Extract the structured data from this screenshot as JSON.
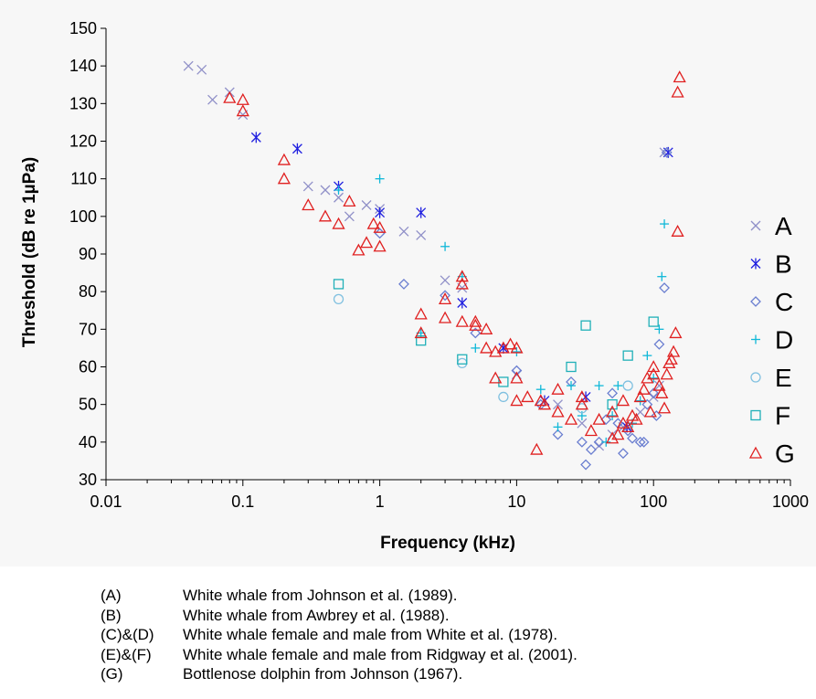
{
  "chart_data": {
    "type": "scatter",
    "xlabel": "Frequency (kHz)",
    "ylabel": "Threshold (dB re 1µPa)",
    "xscale": "log",
    "xlim": [
      0.01,
      1000
    ],
    "ylim": [
      30,
      150
    ],
    "x_ticks": [
      0.01,
      0.1,
      1,
      10,
      100,
      1000
    ],
    "x_tick_labels": [
      "0.01",
      "0.1",
      "1",
      "10",
      "100",
      "1000"
    ],
    "y_ticks": [
      30,
      40,
      50,
      60,
      70,
      80,
      90,
      100,
      110,
      120,
      130,
      140,
      150
    ],
    "y_tick_labels": [
      "30",
      "40",
      "50",
      "60",
      "70",
      "80",
      "90",
      "100",
      "110",
      "120",
      "130",
      "140",
      "150"
    ],
    "grid": false,
    "legend_position": "right",
    "series": [
      {
        "name": "A",
        "marker": "x",
        "color": "#9090c8",
        "points": [
          [
            0.04,
            140
          ],
          [
            0.05,
            139
          ],
          [
            0.06,
            131
          ],
          [
            0.08,
            133
          ],
          [
            0.1,
            127
          ],
          [
            0.3,
            108
          ],
          [
            0.4,
            107
          ],
          [
            0.5,
            105
          ],
          [
            0.6,
            100
          ],
          [
            0.8,
            103
          ],
          [
            1,
            102
          ],
          [
            1.5,
            96
          ],
          [
            2,
            95
          ],
          [
            3,
            83
          ],
          [
            4,
            81
          ],
          [
            8,
            65
          ],
          [
            10,
            58
          ],
          [
            20,
            50
          ],
          [
            30,
            45
          ],
          [
            40,
            39
          ],
          [
            50,
            42
          ],
          [
            60,
            44
          ],
          [
            80,
            48
          ],
          [
            100,
            52
          ],
          [
            110,
            55
          ],
          [
            120,
            117
          ]
        ]
      },
      {
        "name": "B",
        "marker": "asterisk",
        "color": "#2020e0",
        "points": [
          [
            0.125,
            121
          ],
          [
            0.25,
            118
          ],
          [
            0.5,
            108
          ],
          [
            1,
            101
          ],
          [
            2,
            101
          ],
          [
            4,
            77
          ],
          [
            8,
            65
          ],
          [
            16,
            51
          ],
          [
            32,
            52
          ],
          [
            64,
            44
          ],
          [
            128,
            117
          ]
        ]
      },
      {
        "name": "C",
        "marker": "diamond",
        "color": "#6a7ed0",
        "points": [
          [
            1,
            95.5
          ],
          [
            1.5,
            82
          ],
          [
            3,
            79
          ],
          [
            5,
            69
          ],
          [
            10,
            59
          ],
          [
            15,
            50
          ],
          [
            20,
            42
          ],
          [
            25,
            56
          ],
          [
            30,
            40
          ],
          [
            32,
            34
          ],
          [
            35,
            38
          ],
          [
            40,
            40
          ],
          [
            45,
            46
          ],
          [
            50,
            53
          ],
          [
            55,
            45
          ],
          [
            60,
            37
          ],
          [
            65,
            43
          ],
          [
            70,
            41
          ],
          [
            80,
            40
          ],
          [
            85,
            40
          ],
          [
            90,
            50
          ],
          [
            100,
            53
          ],
          [
            105,
            47
          ],
          [
            110,
            66
          ],
          [
            120,
            81
          ],
          [
            125,
            117
          ]
        ]
      },
      {
        "name": "D",
        "marker": "plus",
        "color": "#10b8d8",
        "points": [
          [
            0.5,
            107
          ],
          [
            1,
            110
          ],
          [
            2,
            69
          ],
          [
            3,
            92
          ],
          [
            4,
            84
          ],
          [
            5,
            65
          ],
          [
            10,
            64
          ],
          [
            15,
            54
          ],
          [
            20,
            44
          ],
          [
            25,
            55
          ],
          [
            30,
            47
          ],
          [
            40,
            55
          ],
          [
            45,
            40
          ],
          [
            50,
            47
          ],
          [
            55,
            55
          ],
          [
            70,
            45
          ],
          [
            80,
            51
          ],
          [
            90,
            63
          ],
          [
            100,
            57
          ],
          [
            110,
            70
          ],
          [
            115,
            84
          ],
          [
            120,
            98
          ]
        ]
      },
      {
        "name": "E",
        "marker": "circle",
        "color": "#80c0e0",
        "points": [
          [
            0.5,
            78
          ],
          [
            4,
            61
          ],
          [
            8,
            52
          ],
          [
            30,
            49
          ],
          [
            65,
            55
          ]
        ]
      },
      {
        "name": "F",
        "marker": "square",
        "color": "#20b0b8",
        "points": [
          [
            0.5,
            82
          ],
          [
            2,
            67
          ],
          [
            4,
            62
          ],
          [
            8,
            56
          ],
          [
            25,
            60
          ],
          [
            32,
            71
          ],
          [
            50,
            50
          ],
          [
            65,
            63
          ],
          [
            100,
            72
          ]
        ]
      },
      {
        "name": "G",
        "marker": "triangle",
        "color": "#e02020",
        "points": [
          [
            0.08,
            131.5
          ],
          [
            0.1,
            131
          ],
          [
            0.1,
            128
          ],
          [
            0.2,
            115
          ],
          [
            0.2,
            110
          ],
          [
            0.3,
            103
          ],
          [
            0.4,
            100
          ],
          [
            0.5,
            98
          ],
          [
            0.6,
            104
          ],
          [
            0.7,
            91
          ],
          [
            0.8,
            93
          ],
          [
            0.9,
            98
          ],
          [
            1,
            97
          ],
          [
            1,
            92
          ],
          [
            2,
            74
          ],
          [
            2,
            69
          ],
          [
            3,
            78
          ],
          [
            3,
            73
          ],
          [
            4,
            84
          ],
          [
            4,
            82
          ],
          [
            4,
            72
          ],
          [
            5,
            72
          ],
          [
            5,
            71
          ],
          [
            6,
            70
          ],
          [
            6,
            65
          ],
          [
            7,
            64
          ],
          [
            7,
            57
          ],
          [
            8,
            65
          ],
          [
            9,
            66
          ],
          [
            10,
            65
          ],
          [
            10,
            57
          ],
          [
            10,
            51
          ],
          [
            12,
            52
          ],
          [
            14,
            38
          ],
          [
            15,
            51
          ],
          [
            16,
            50
          ],
          [
            20,
            54
          ],
          [
            20,
            48
          ],
          [
            25,
            46
          ],
          [
            30,
            52
          ],
          [
            30,
            50
          ],
          [
            35,
            43
          ],
          [
            40,
            46
          ],
          [
            50,
            48
          ],
          [
            50,
            41
          ],
          [
            55,
            42
          ],
          [
            60,
            51
          ],
          [
            60,
            45
          ],
          [
            65,
            44
          ],
          [
            70,
            47
          ],
          [
            75,
            46
          ],
          [
            80,
            52
          ],
          [
            85,
            54
          ],
          [
            90,
            57
          ],
          [
            95,
            48
          ],
          [
            100,
            58
          ],
          [
            100,
            60
          ],
          [
            110,
            55
          ],
          [
            115,
            53
          ],
          [
            120,
            49
          ],
          [
            125,
            58
          ],
          [
            130,
            61
          ],
          [
            135,
            62
          ],
          [
            140,
            64
          ],
          [
            145,
            69
          ],
          [
            150,
            96
          ],
          [
            150,
            133
          ],
          [
            155,
            137
          ]
        ]
      }
    ]
  },
  "caption": [
    {
      "label": "(A)",
      "text": "White whale from Johnson et al. (1989)."
    },
    {
      "label": "(B)",
      "text": "White whale from Awbrey et al. (1988)."
    },
    {
      "label": "(C)&(D)",
      "text": "White whale female and male from White et al. (1978)."
    },
    {
      "label": "(E)&(F)",
      "text": "White whale female and male from Ridgway et al. (2001)."
    },
    {
      "label": "(G)",
      "text": "Bottlenose dolphin from Johnson (1967)."
    }
  ]
}
